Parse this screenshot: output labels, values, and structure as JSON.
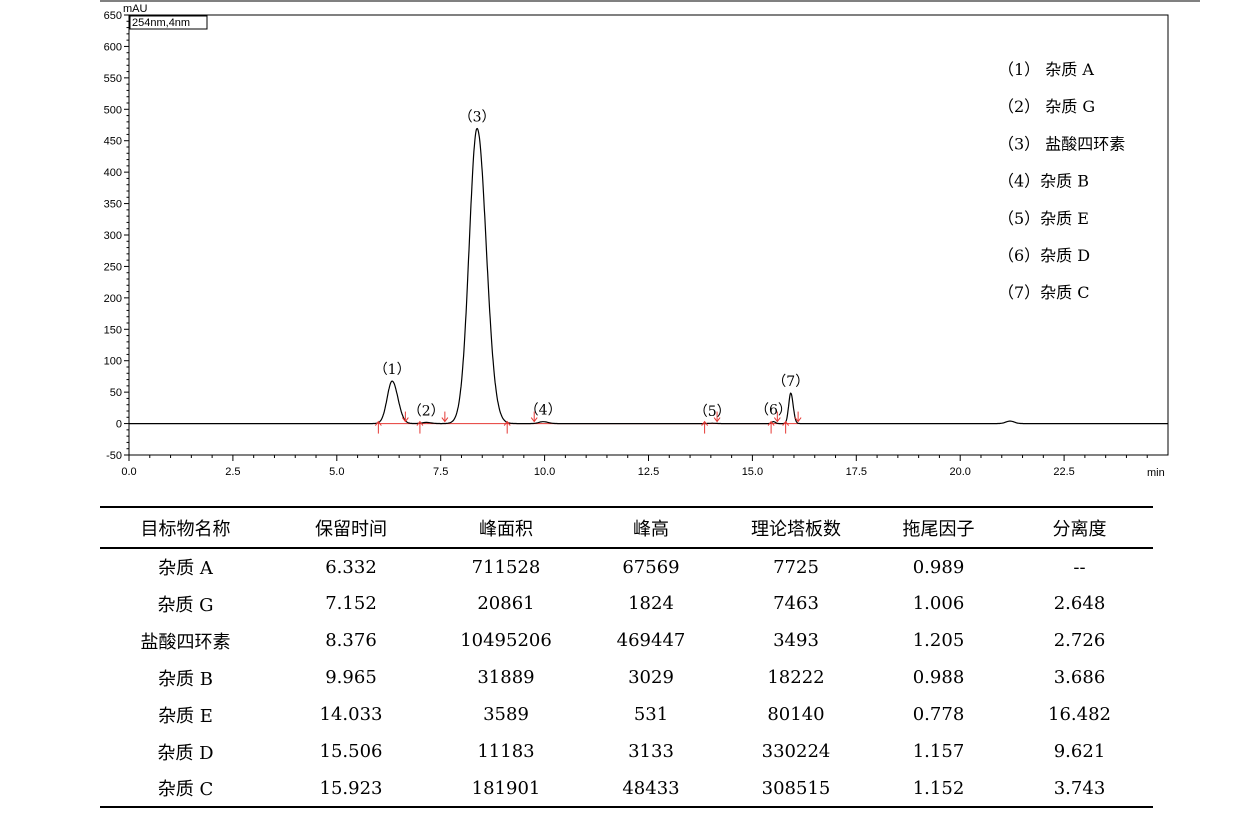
{
  "chart_data": {
    "type": "line",
    "ylabel": "mAU",
    "xlabel": "min",
    "wavelength_label": "254nm,4nm",
    "xlim": [
      0.0,
      25.0
    ],
    "ylim": [
      -50,
      650
    ],
    "x_ticks": [
      "0.0",
      "2.5",
      "5.0",
      "7.5",
      "10.0",
      "12.5",
      "15.0",
      "17.5",
      "20.0",
      "22.5"
    ],
    "y_ticks": [
      "-50",
      "0",
      "50",
      "100",
      "150",
      "200",
      "250",
      "300",
      "350",
      "400",
      "450",
      "500",
      "550",
      "600",
      "650"
    ],
    "peaks": [
      {
        "label": "（1）",
        "rt": 6.332,
        "height": 67.569,
        "width": 0.12
      },
      {
        "label": "（2）",
        "rt": 7.152,
        "height": 1.824,
        "width": 0.1
      },
      {
        "label": "（3）",
        "rt": 8.376,
        "height": 469.447,
        "width": 0.19
      },
      {
        "label": "（4）",
        "rt": 9.965,
        "height": 3.029,
        "width": 0.1
      },
      {
        "label": "（5）",
        "rt": 14.033,
        "height": 0.531,
        "width": 0.08
      },
      {
        "label": "（6）",
        "rt": 15.506,
        "height": 3.133,
        "width": 0.04
      },
      {
        "label": "（7）",
        "rt": 15.923,
        "height": 48.433,
        "width": 0.05
      }
    ],
    "integration_markers": [
      6.0,
      6.65,
      7.0,
      7.6,
      9.1,
      9.75,
      13.85,
      14.15,
      15.45,
      15.6,
      15.8,
      16.1
    ],
    "legend": [
      "（1）  杂质 A",
      "（2）  杂质 G",
      "（3） 盐酸四环素",
      "（4）杂质 B",
      "（5）杂质 E",
      "（6）杂质 D",
      "（7）杂质 C"
    ]
  },
  "table": {
    "headers": [
      "目标物名称",
      "保留时间",
      "峰面积",
      "峰高",
      "理论塔板数",
      "拖尾因子",
      "分离度"
    ],
    "rows": [
      [
        "杂质 A",
        "6.332",
        "711528",
        "67569",
        "7725",
        "0.989",
        "--"
      ],
      [
        "杂质 G",
        "7.152",
        "20861",
        "1824",
        "7463",
        "1.006",
        "2.648"
      ],
      [
        "盐酸四环素",
        "8.376",
        "10495206",
        "469447",
        "3493",
        "1.205",
        "2.726"
      ],
      [
        "杂质 B",
        "9.965",
        "31889",
        "3029",
        "18222",
        "0.988",
        "3.686"
      ],
      [
        "杂质 E",
        "14.033",
        "3589",
        "531",
        "80140",
        "0.778",
        "16.482"
      ],
      [
        "杂质 D",
        "15.506",
        "11183",
        "3133",
        "330224",
        "1.157",
        "9.621"
      ],
      [
        "杂质 C",
        "15.923",
        "181901",
        "48433",
        "308515",
        "1.152",
        "3.743"
      ]
    ]
  }
}
